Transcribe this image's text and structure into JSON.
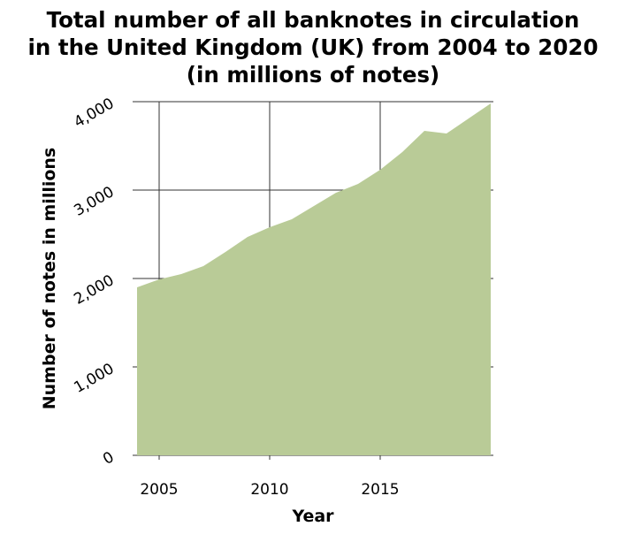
{
  "chart_data": {
    "type": "area",
    "title_lines": [
      "Total number of all banknotes in circulation",
      "in the United Kingdom (UK) from 2004 to 2020",
      "(in millions of notes)"
    ],
    "xlabel": "Year",
    "ylabel": "Number of notes in millions",
    "xlim": [
      2004,
      2020
    ],
    "ylim": [
      0,
      4000
    ],
    "x_ticks": [
      2005,
      2010,
      2015
    ],
    "x_tick_labels": [
      "2005",
      "2010",
      "2015"
    ],
    "y_ticks": [
      0,
      1000,
      2000,
      3000,
      4000
    ],
    "y_tick_labels": [
      "0",
      "1,000",
      "2,000",
      "3,000",
      "4,000"
    ],
    "grid": true,
    "fill_color": "#b9cb97",
    "x": [
      2004,
      2005,
      2006,
      2007,
      2008,
      2009,
      2010,
      2011,
      2012,
      2013,
      2014,
      2015,
      2016,
      2017,
      2018,
      2019,
      2020
    ],
    "values": [
      1900,
      1990,
      2050,
      2140,
      2300,
      2470,
      2580,
      2670,
      2820,
      2970,
      3070,
      3230,
      3430,
      3670,
      3640,
      3810,
      3980
    ]
  }
}
